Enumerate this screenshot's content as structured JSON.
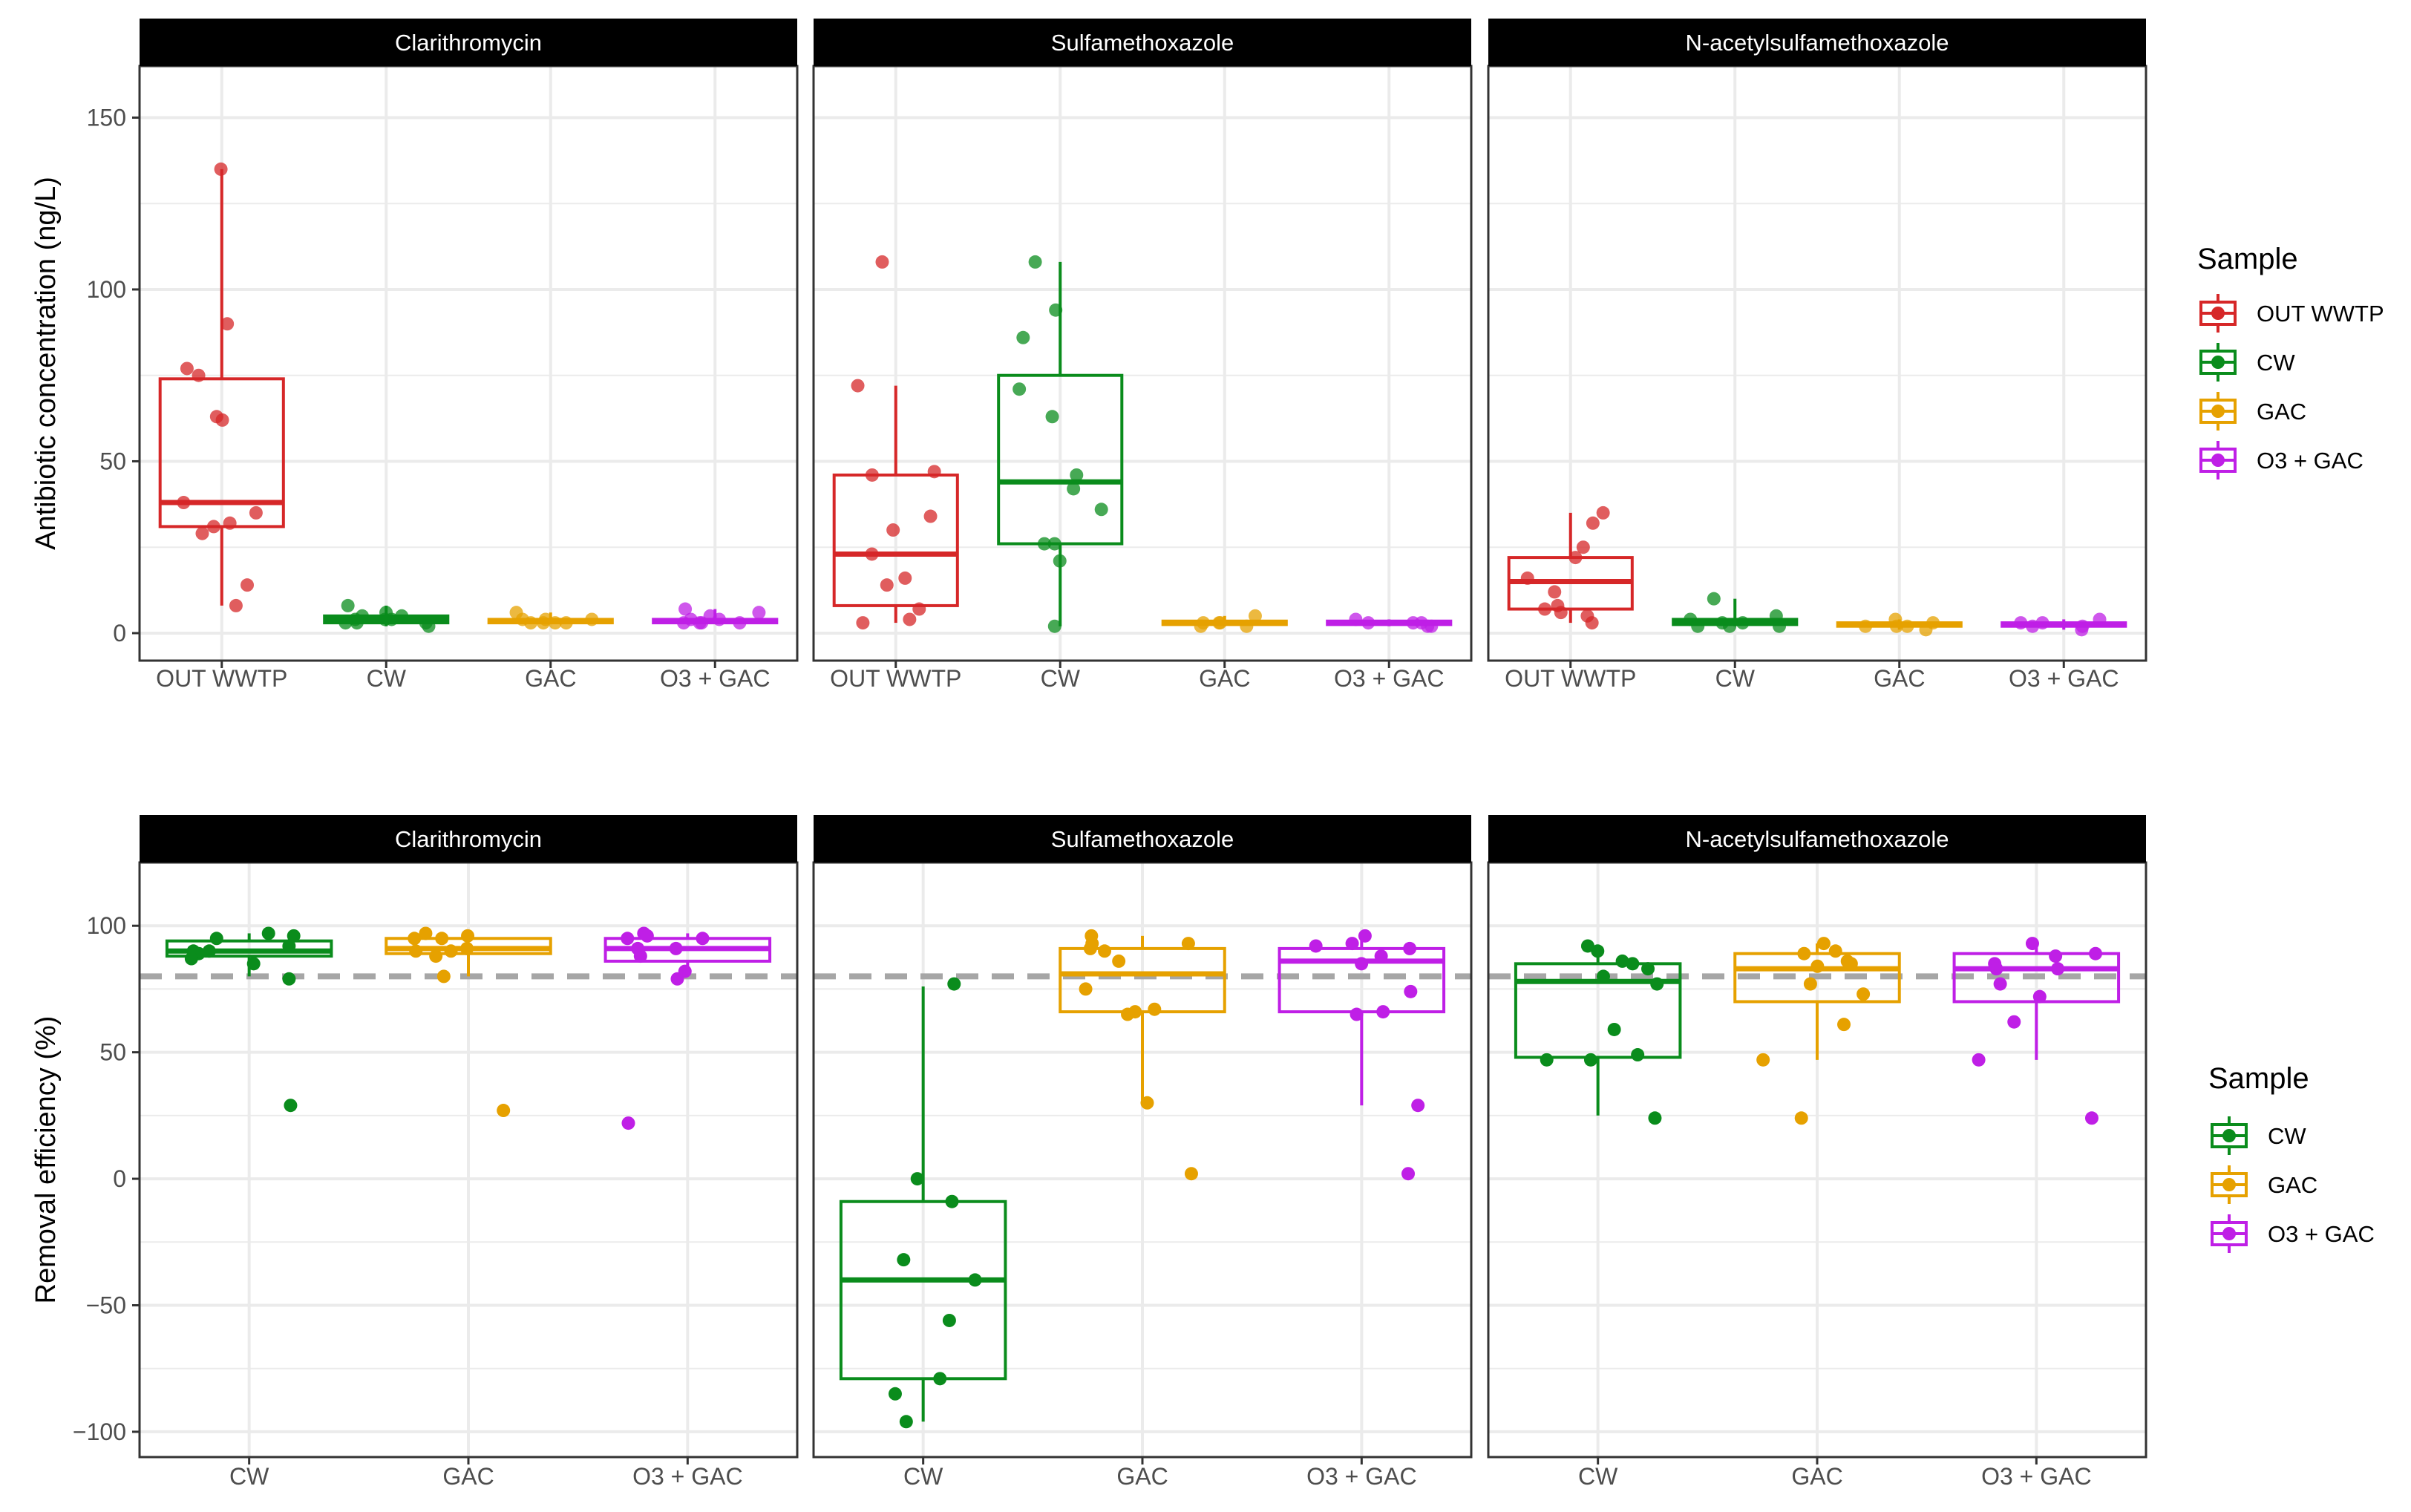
{
  "chart_data": [
    {
      "type": "box",
      "ylabel": "Antibiotic concentration (ng/L)",
      "ylim": [
        -8,
        165
      ],
      "yticks": [
        0,
        50,
        100,
        150
      ],
      "categories": [
        "OUT WWTP",
        "CW",
        "GAC",
        "O3 + GAC"
      ],
      "legend": {
        "title": "Sample",
        "placement": "right",
        "entries": [
          "OUT WWTP",
          "CW",
          "GAC",
          "O3 + GAC"
        ]
      },
      "facets": [
        {
          "title": "Clarithromycin",
          "boxes": [
            {
              "category": "OUT WWTP",
              "q1": 31,
              "median": 38,
              "q3": 74,
              "whisker_low": 8,
              "whisker_high": 135,
              "points": [
                135,
                90,
                77,
                75,
                63,
                62,
                38,
                35,
                32,
                31,
                29,
                14,
                8
              ]
            },
            {
              "category": "CW",
              "q1": 3,
              "median": 4,
              "q3": 5,
              "whisker_low": 2,
              "whisker_high": 8,
              "points": [
                8,
                6,
                5,
                5,
                4,
                4,
                4,
                3,
                3,
                3,
                2
              ]
            },
            {
              "category": "GAC",
              "q1": 3,
              "median": 3.5,
              "q3": 4,
              "whisker_low": 3,
              "whisker_high": 6,
              "points": [
                6,
                4,
                4,
                4,
                3,
                3,
                3,
                3
              ]
            },
            {
              "category": "O3 + GAC",
              "q1": 3,
              "median": 3.5,
              "q3": 4,
              "whisker_low": 3,
              "whisker_high": 7,
              "points": [
                7,
                6,
                5,
                4,
                4,
                3,
                3,
                3,
                3
              ]
            }
          ]
        },
        {
          "title": "Sulfamethoxazole",
          "boxes": [
            {
              "category": "OUT WWTP",
              "q1": 8,
              "median": 23,
              "q3": 46,
              "whisker_low": 3,
              "whisker_high": 72,
              "points": [
                108,
                72,
                47,
                46,
                34,
                30,
                23,
                16,
                14,
                7,
                4,
                3
              ]
            },
            {
              "category": "CW",
              "q1": 26,
              "median": 44,
              "q3": 75,
              "whisker_low": 2,
              "whisker_high": 108,
              "points": [
                108,
                94,
                86,
                71,
                63,
                46,
                42,
                36,
                26,
                26,
                21,
                2
              ]
            },
            {
              "category": "GAC",
              "q1": 2.5,
              "median": 3,
              "q3": 3.5,
              "whisker_low": 2,
              "whisker_high": 5,
              "points": [
                5,
                3,
                3,
                3,
                2,
                2
              ]
            },
            {
              "category": "O3 + GAC",
              "q1": 2.5,
              "median": 3,
              "q3": 3.5,
              "whisker_low": 2,
              "whisker_high": 4,
              "points": [
                4,
                3,
                3,
                3,
                2,
                2
              ]
            }
          ]
        },
        {
          "title": "N-acetylsulfamethoxazole",
          "boxes": [
            {
              "category": "OUT WWTP",
              "q1": 7,
              "median": 15,
              "q3": 22,
              "whisker_low": 3,
              "whisker_high": 35,
              "points": [
                35,
                32,
                25,
                22,
                16,
                12,
                8,
                7,
                6,
                5,
                3
              ]
            },
            {
              "category": "CW",
              "q1": 2.5,
              "median": 3,
              "q3": 4,
              "whisker_low": 2,
              "whisker_high": 10,
              "points": [
                10,
                5,
                4,
                3,
                3,
                2,
                2,
                2
              ]
            },
            {
              "category": "GAC",
              "q1": 2,
              "median": 2.5,
              "q3": 3,
              "whisker_low": 1,
              "whisker_high": 4,
              "points": [
                4,
                3,
                2,
                2,
                2,
                1
              ]
            },
            {
              "category": "O3 + GAC",
              "q1": 2,
              "median": 2.5,
              "q3": 3,
              "whisker_low": 1,
              "whisker_high": 4,
              "points": [
                4,
                3,
                3,
                2,
                2,
                1
              ]
            }
          ]
        }
      ]
    },
    {
      "type": "box",
      "ylabel": "Removal efficiency (%)",
      "ylim": [
        -110,
        125
      ],
      "yticks": [
        100,
        50,
        0,
        -50,
        -100
      ],
      "ytick_labels": [
        "100",
        "50",
        "0",
        "−50",
        "−100"
      ],
      "categories": [
        "CW",
        "GAC",
        "O3 + GAC"
      ],
      "reference_line": 80,
      "legend": {
        "title": "Sample",
        "placement": "right",
        "entries": [
          "CW",
          "GAC",
          "O3 + GAC"
        ]
      },
      "facets": [
        {
          "title": "Clarithromycin",
          "boxes": [
            {
              "category": "CW",
              "q1": 88,
              "median": 90,
              "q3": 94,
              "whisker_low": 80,
              "whisker_high": 97,
              "points": [
                97,
                96,
                95,
                92,
                90,
                90,
                89,
                87,
                85,
                79,
                29
              ]
            },
            {
              "category": "GAC",
              "q1": 89,
              "median": 91,
              "q3": 95,
              "whisker_low": 80,
              "whisker_high": 97,
              "points": [
                97,
                96,
                95,
                95,
                91,
                90,
                90,
                88,
                80,
                27
              ]
            },
            {
              "category": "O3 + GAC",
              "q1": 86,
              "median": 91,
              "q3": 95,
              "whisker_low": 80,
              "whisker_high": 97,
              "points": [
                97,
                96,
                95,
                95,
                91,
                91,
                88,
                82,
                79,
                22
              ]
            }
          ]
        },
        {
          "title": "Sulfamethoxazole",
          "boxes": [
            {
              "category": "CW",
              "q1": -79,
              "median": -40,
              "q3": -9,
              "whisker_low": -96,
              "whisker_high": 76,
              "points": [
                77,
                0,
                -9,
                -32,
                -40,
                -56,
                -79,
                -85,
                -96
              ]
            },
            {
              "category": "GAC",
              "q1": 66,
              "median": 81,
              "q3": 91,
              "whisker_low": 31,
              "whisker_high": 96,
              "points": [
                96,
                93,
                93,
                91,
                90,
                86,
                75,
                67,
                66,
                65,
                30,
                2
              ]
            },
            {
              "category": "O3 + GAC",
              "q1": 66,
              "median": 86,
              "q3": 91,
              "whisker_low": 29,
              "whisker_high": 96,
              "points": [
                96,
                93,
                92,
                91,
                88,
                85,
                74,
                66,
                65,
                29,
                2
              ]
            }
          ]
        },
        {
          "title": "N-acetylsulfamethoxazole",
          "boxes": [
            {
              "category": "CW",
              "q1": 48,
              "median": 78,
              "q3": 85,
              "whisker_low": 25,
              "whisker_high": 92,
              "points": [
                92,
                90,
                86,
                85,
                83,
                80,
                77,
                59,
                49,
                47,
                47,
                24
              ]
            },
            {
              "category": "GAC",
              "q1": 70,
              "median": 83,
              "q3": 89,
              "whisker_low": 47,
              "whisker_high": 93,
              "points": [
                93,
                90,
                89,
                86,
                85,
                84,
                77,
                73,
                61,
                47,
                24
              ]
            },
            {
              "category": "O3 + GAC",
              "q1": 70,
              "median": 83,
              "q3": 89,
              "whisker_low": 47,
              "whisker_high": 93,
              "points": [
                93,
                89,
                88,
                85,
                83,
                83,
                77,
                72,
                62,
                47,
                24
              ]
            }
          ]
        }
      ]
    }
  ],
  "colors": {
    "OUT WWTP": "#d62728",
    "CW": "#0a8c1c",
    "GAC": "#e6a100",
    "O3 + GAC": "#bf1fe6",
    "strip_bg": "#000000",
    "grid": "#ebebeb",
    "panel_border": "#333333",
    "reference_line": "#a6a6a6"
  }
}
